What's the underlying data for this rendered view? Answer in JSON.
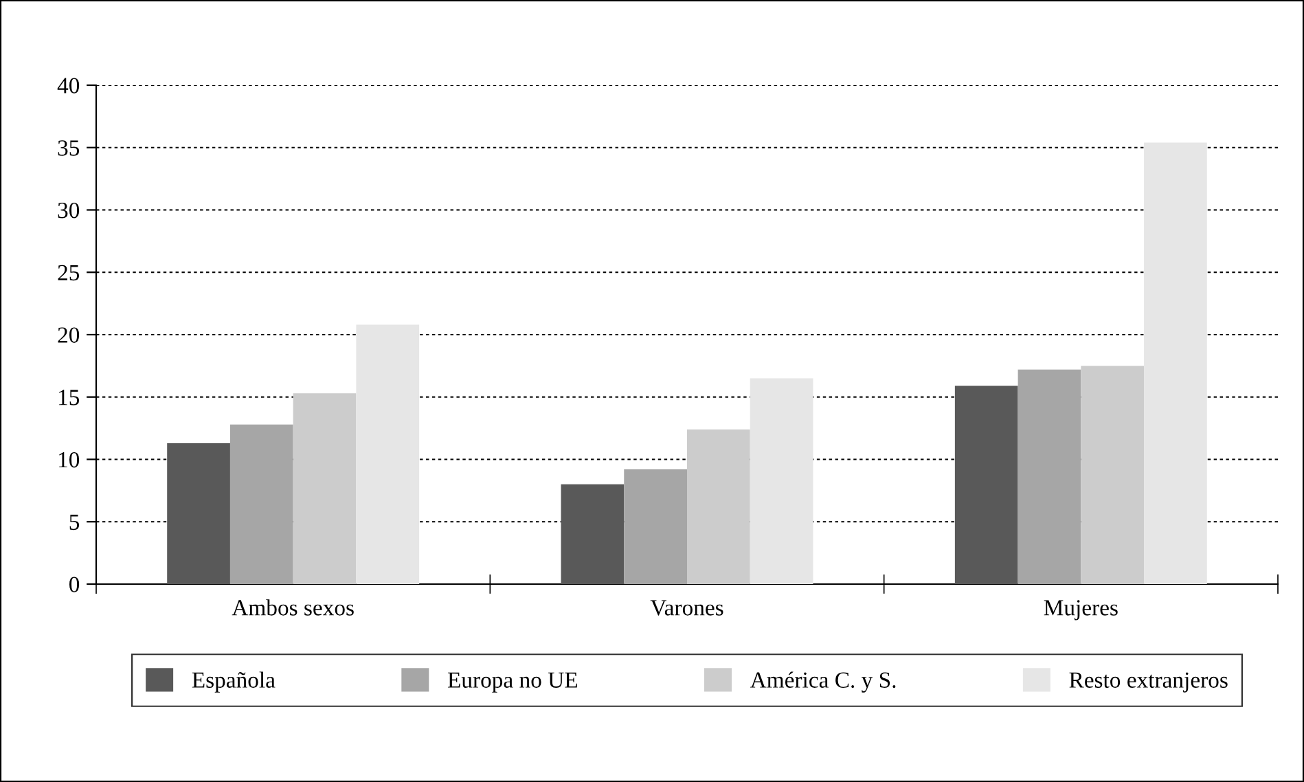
{
  "chart_data": {
    "type": "bar",
    "categories": [
      "Ambos sexos",
      "Varones",
      "Mujeres"
    ],
    "series": [
      {
        "name": "Española",
        "color": "#595959",
        "values": [
          11.3,
          8.0,
          15.9
        ]
      },
      {
        "name": "Europa no UE",
        "color": "#a6a6a6",
        "values": [
          12.8,
          9.2,
          17.2
        ]
      },
      {
        "name": "América C. y S.",
        "color": "#cccccc",
        "values": [
          15.3,
          12.4,
          17.5
        ]
      },
      {
        "name": "Resto extranjeros",
        "color": "#e6e6e6",
        "values": [
          20.8,
          16.5,
          35.4
        ]
      }
    ],
    "ylim": [
      0,
      40
    ],
    "yticks": [
      0,
      5,
      10,
      15,
      20,
      25,
      30,
      35,
      40
    ],
    "grid": "y",
    "legend": "bottom"
  }
}
